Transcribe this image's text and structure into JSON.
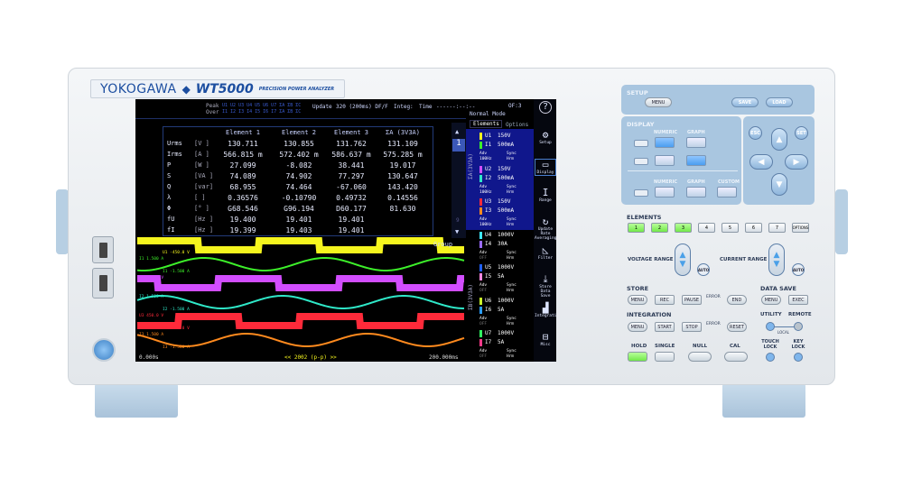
{
  "branding": {
    "brand": "YOKOGAWA",
    "model": "WT5000",
    "subtitle": "PRECISION POWER ANALYZER"
  },
  "status": {
    "peak_label": "Peak",
    "peak_channels": "U1 U2 U3 U4 U5 U6 U7 ΣA ΣB ΣC",
    "over_label": "Over",
    "over_channels": "I1 I2 I3 I4 I5 I6 I7 ΣA ΣB ΣC",
    "update_label": "Update",
    "update_value": "320 (200ms) DF/F",
    "integ_label": "Integ:",
    "time_label": "Time",
    "time_value": "------:--:--",
    "mode": "Normal Mode",
    "frame": "OF:3"
  },
  "table": {
    "headers": [
      "Element 1",
      "Element 2",
      "Element 3",
      "ΣA (3V3A)"
    ],
    "rows": [
      {
        "name": "Urms",
        "unit": "[V  ]",
        "values": [
          "130.711",
          "130.855",
          "131.762",
          "131.109"
        ]
      },
      {
        "name": "Irms",
        "unit": "[A  ]",
        "values": [
          "566.815 m",
          "572.402 m",
          "586.637 m",
          "575.285 m"
        ]
      },
      {
        "name": "P",
        "unit": "[W  ]",
        "values": [
          "27.099",
          "-8.082",
          "38.441",
          "19.017"
        ]
      },
      {
        "name": "S",
        "unit": "[VA ]",
        "values": [
          "74.089",
          "74.902",
          "77.297",
          "130.647"
        ]
      },
      {
        "name": "Q",
        "unit": "[var]",
        "values": [
          "68.955",
          "74.464",
          "-67.060",
          "143.420"
        ]
      },
      {
        "name": "λ",
        "unit": "[   ]",
        "values": [
          "0.36576",
          "-0.10790",
          "0.49732",
          "0.14556"
        ]
      },
      {
        "name": "Φ",
        "unit": "[°  ]",
        "values": [
          "G68.546",
          "G96.194",
          "D60.177",
          "81.630"
        ]
      },
      {
        "name": "fU",
        "unit": "[Hz ]",
        "values": [
          "19.400",
          "19.401",
          "19.401",
          ""
        ]
      },
      {
        "name": "fI",
        "unit": "[Hz ]",
        "values": [
          "19.399",
          "19.403",
          "19.401",
          ""
        ]
      }
    ],
    "page": "1",
    "page_last": "9"
  },
  "waveforms": {
    "group_label": "Group",
    "traces": [
      {
        "label": "U1",
        "top": "450.0 V",
        "bottom": "-450.0 V",
        "color": "#f5f51e",
        "shape": "square",
        "phase": 0
      },
      {
        "label": "I1",
        "top": "1.500 A",
        "bottom": "-1.500 A",
        "color": "#3df02a",
        "shape": "sine",
        "phase": 0.2
      },
      {
        "label": "U2",
        "top": "450.0 V",
        "bottom": "-450.0 V",
        "color": "#d24dff",
        "shape": "square",
        "phase": 0.33
      },
      {
        "label": "I2",
        "top": "1.500 A",
        "bottom": "-1.500 A",
        "color": "#2fe8c8",
        "shape": "sine",
        "phase": 0.55
      },
      {
        "label": "U3",
        "top": "450.0 V",
        "bottom": "-450.0 V",
        "color": "#ff2a3a",
        "shape": "square",
        "phase": 0.66
      },
      {
        "label": "I3",
        "top": "1.500 A",
        "bottom": "-1.500 A",
        "color": "#ff8a1e",
        "shape": "sine",
        "phase": 0.85
      }
    ],
    "time_start": "0.000s",
    "time_end": "200.000ms",
    "points_label": "<< 2002 (p-p) >>"
  },
  "elements_panel": {
    "tabs": [
      "Elements",
      "Options"
    ],
    "group_a_label": "ΣA(3V3A)",
    "group_b_label": "ΣB(3V3A)",
    "items": [
      {
        "u": "U1",
        "ur": "150V",
        "i": "I1",
        "ir": "500mA",
        "uc": "#f5f51e",
        "ic": "#3df02a",
        "lf": "Adv",
        "ff": "100Hz",
        "sync": "Sync",
        "hrm": "Hrm",
        "sel": true
      },
      {
        "u": "U2",
        "ur": "150V",
        "i": "I2",
        "ir": "500mA",
        "uc": "#d24dff",
        "ic": "#2fe8c8",
        "lf": "Adv",
        "ff": "100Hz",
        "sync": "Sync",
        "hrm": "Hrm",
        "sel": true
      },
      {
        "u": "U3",
        "ur": "150V",
        "i": "I3",
        "ir": "500mA",
        "uc": "#ff2a3a",
        "ic": "#ff8a1e",
        "lf": "Adv",
        "ff": "100Hz",
        "sync": "Sync",
        "hrm": "Hrm",
        "sel": true
      },
      {
        "u": "U4",
        "ur": "1000V",
        "i": "I4",
        "ir": "30A",
        "uc": "#3fe8ff",
        "ic": "#9a6bff",
        "lf": "Adv",
        "ff": "OFF",
        "sync": "Sync",
        "hrm": "Hrm",
        "sel": false
      },
      {
        "u": "U5",
        "ur": "1000V",
        "i": "I5",
        "ir": "5A",
        "uc": "#2060ff",
        "ic": "#ff88e0",
        "lf": "Adv",
        "ff": "OFF",
        "sync": "Sync",
        "hrm": "Hrm",
        "sel": false
      },
      {
        "u": "U6",
        "ur": "1000V",
        "i": "I6",
        "ir": "5A",
        "uc": "#c8f52a",
        "ic": "#2a9dff",
        "lf": "Adv",
        "ff": "OFF",
        "sync": "Sync",
        "hrm": "Hrm",
        "sel": false
      },
      {
        "u": "U7",
        "ur": "1000V",
        "i": "I7",
        "ir": "5A",
        "uc": "#30f060",
        "ic": "#ff3a8a",
        "lf": "Adv",
        "ff": "OFF",
        "sync": "Sync",
        "hrm": "Hrm",
        "sel": false
      }
    ]
  },
  "side_menu": [
    {
      "label": "",
      "icon": "help-icon",
      "glyph": "?"
    },
    {
      "label": "Setup",
      "icon": "gear-icon",
      "glyph": "⚙"
    },
    {
      "label": "Display",
      "icon": "display-icon",
      "glyph": "▭"
    },
    {
      "label": "Range",
      "icon": "range-icon",
      "glyph": "I"
    },
    {
      "label": "Update Rate Averaging",
      "icon": "refresh-icon",
      "glyph": "↻"
    },
    {
      "label": "Filter",
      "icon": "filter-icon",
      "glyph": "◺"
    },
    {
      "label": "Store Data Save",
      "icon": "store-icon",
      "glyph": "⤓"
    },
    {
      "label": "Integration",
      "icon": "integration-icon",
      "glyph": "▟"
    },
    {
      "label": "Misc",
      "icon": "toolbox-icon",
      "glyph": "⊟"
    }
  ],
  "panel": {
    "setup": {
      "title": "SETUP",
      "menu": "MENU",
      "save": "SAVE",
      "load": "LOAD"
    },
    "display": {
      "title": "DISPLAY",
      "numeric": "NUMERIC",
      "graph": "GRAPH",
      "custom": "CUSTOM"
    },
    "nav": {
      "esc": "ESC",
      "set": "SET"
    },
    "elements": {
      "title": "ELEMENTS",
      "buttons": [
        "1",
        "2",
        "3",
        "4",
        "5",
        "6",
        "7",
        "OPTIONS"
      ],
      "active": [
        true,
        true,
        true,
        false,
        false,
        false,
        false,
        false
      ]
    },
    "voltage_range": "VOLTAGE RANGE",
    "current_range": "CURRENT RANGE",
    "auto": "AUTO",
    "store": {
      "title": "STORE",
      "menu": "MENU",
      "rec": "REC",
      "pause": "PAUSE",
      "error": "ERROR",
      "end": "END"
    },
    "data_save": {
      "title": "DATA SAVE",
      "menu": "MENU",
      "exec": "EXEC"
    },
    "integration": {
      "title": "INTEGRATION",
      "menu": "MENU",
      "start": "START",
      "stop": "STOP",
      "error": "ERROR",
      "reset": "RESET"
    },
    "utility": "UTILITY",
    "remote": "REMOTE",
    "local": "LOCAL",
    "hold": "HOLD",
    "single": "SINGLE",
    "null": "NULL",
    "cal": "CAL",
    "touch_lock": "TOUCH LOCK",
    "key_lock": "KEY LOCK"
  }
}
